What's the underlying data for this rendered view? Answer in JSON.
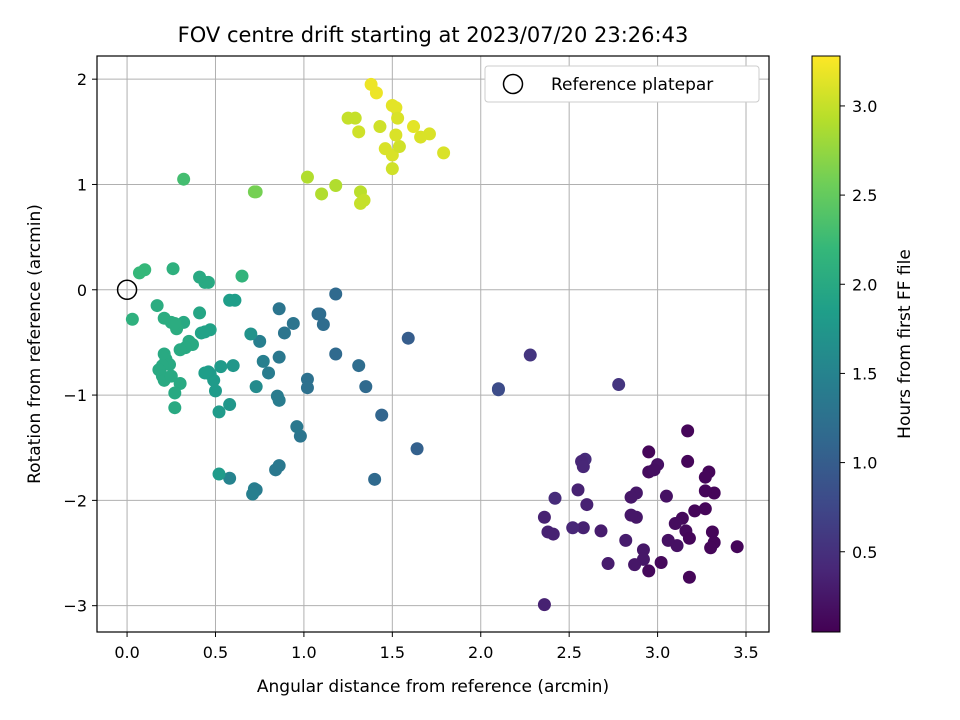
{
  "chart_data": {
    "type": "scatter",
    "title": "FOV centre drift starting at 2023/07/20 23:26:43",
    "xlabel": "Angular distance from reference (arcmin)",
    "ylabel": "Rotation from reference (arcmin)",
    "xlim": [
      -0.17,
      3.63
    ],
    "ylim": [
      -3.25,
      2.22
    ],
    "xticks": [
      0.0,
      0.5,
      1.0,
      1.5,
      2.0,
      2.5,
      3.0,
      3.5
    ],
    "xtick_labels": [
      "0.0",
      "0.5",
      "1.0",
      "1.5",
      "2.0",
      "2.5",
      "3.0",
      "3.5"
    ],
    "yticks": [
      2,
      1,
      0,
      -1,
      -2,
      -3
    ],
    "ytick_labels": [
      "2",
      "1",
      "0",
      "−1",
      "−2",
      "−3"
    ],
    "grid": true,
    "legend": {
      "position": "top-right",
      "entries": [
        "Reference platepar"
      ]
    },
    "reference_point": {
      "x": 0.0,
      "y": 0.0
    },
    "colorbar": {
      "label": "Hours from first FF file",
      "range": [
        0.05,
        3.28
      ],
      "ticks": [
        0.5,
        1.0,
        1.5,
        2.0,
        2.5,
        3.0
      ],
      "tick_labels": [
        "0.5",
        "1.0",
        "1.5",
        "2.0",
        "2.5",
        "3.0"
      ],
      "colormap": [
        "#440154",
        "#482878",
        "#3e4989",
        "#31688e",
        "#26828e",
        "#1f9e89",
        "#35b779",
        "#6ece58",
        "#b5de2b",
        "#fde725"
      ]
    },
    "points": [
      [
        3.17,
        -1.34,
        0.1
      ],
      [
        2.95,
        -1.54,
        0.1
      ],
      [
        3.17,
        -1.63,
        0.1
      ],
      [
        2.95,
        -1.73,
        0.15
      ],
      [
        3.29,
        -1.73,
        0.1
      ],
      [
        3.27,
        -1.78,
        0.1
      ],
      [
        3.32,
        -1.93,
        0.1
      ],
      [
        3.27,
        -1.91,
        0.1
      ],
      [
        3.45,
        -2.44,
        0.1
      ],
      [
        3.27,
        -2.08,
        0.1
      ],
      [
        3.21,
        -2.1,
        0.1
      ],
      [
        3.14,
        -2.17,
        0.12
      ],
      [
        3.1,
        -2.22,
        0.15
      ],
      [
        3.16,
        -2.29,
        0.12
      ],
      [
        3.18,
        -2.36,
        0.1
      ],
      [
        3.31,
        -2.3,
        0.1
      ],
      [
        3.32,
        -2.4,
        0.1
      ],
      [
        3.3,
        -2.45,
        0.1
      ],
      [
        3.11,
        -2.43,
        0.2
      ],
      [
        3.06,
        -2.38,
        0.2
      ],
      [
        3.18,
        -2.73,
        0.1
      ],
      [
        3.02,
        -2.59,
        0.12
      ],
      [
        2.95,
        -2.67,
        0.12
      ],
      [
        3.0,
        -1.66,
        0.2
      ],
      [
        2.98,
        -1.71,
        0.18
      ],
      [
        3.05,
        -1.96,
        0.2
      ],
      [
        2.88,
        -1.93,
        0.25
      ],
      [
        2.85,
        -1.97,
        0.25
      ],
      [
        2.88,
        -2.16,
        0.25
      ],
      [
        2.85,
        -2.14,
        0.25
      ],
      [
        2.92,
        -2.47,
        0.25
      ],
      [
        2.92,
        -2.56,
        0.25
      ],
      [
        2.87,
        -2.61,
        0.25
      ],
      [
        2.82,
        -2.38,
        0.3
      ],
      [
        2.72,
        -2.6,
        0.3
      ],
      [
        2.68,
        -2.29,
        0.3
      ],
      [
        2.6,
        -2.04,
        0.35
      ],
      [
        2.58,
        -2.26,
        0.35
      ],
      [
        2.52,
        -2.26,
        0.4
      ],
      [
        2.55,
        -1.9,
        0.35
      ],
      [
        2.59,
        -1.61,
        0.45
      ],
      [
        2.57,
        -1.63,
        0.4
      ],
      [
        2.58,
        -1.68,
        0.4
      ],
      [
        2.42,
        -1.98,
        0.45
      ],
      [
        2.36,
        -2.16,
        0.35
      ],
      [
        2.38,
        -2.3,
        0.35
      ],
      [
        2.41,
        -2.32,
        0.35
      ],
      [
        2.36,
        -2.99,
        0.35
      ],
      [
        2.28,
        -0.62,
        0.55
      ],
      [
        2.78,
        -0.9,
        0.55
      ],
      [
        2.1,
        -0.95,
        0.8
      ],
      [
        2.1,
        -0.94,
        0.8
      ],
      [
        1.64,
        -1.51,
        1.05
      ],
      [
        1.59,
        -0.46,
        1.0
      ],
      [
        1.44,
        -1.19,
        1.1
      ],
      [
        1.4,
        -1.8,
        1.15
      ],
      [
        1.35,
        -0.92,
        1.15
      ],
      [
        1.31,
        -0.72,
        1.2
      ],
      [
        1.18,
        -0.61,
        1.15
      ],
      [
        1.18,
        -0.04,
        1.15
      ],
      [
        1.11,
        -0.33,
        1.2
      ],
      [
        1.09,
        -0.23,
        1.2
      ],
      [
        1.08,
        -0.23,
        1.2
      ],
      [
        1.02,
        -0.85,
        1.25
      ],
      [
        1.02,
        -0.93,
        1.25
      ],
      [
        0.98,
        -1.39,
        1.3
      ],
      [
        0.96,
        -1.3,
        1.35
      ],
      [
        0.94,
        -0.32,
        1.3
      ],
      [
        0.89,
        -0.41,
        1.3
      ],
      [
        0.86,
        -0.18,
        1.3
      ],
      [
        0.86,
        -0.64,
        1.35
      ],
      [
        0.85,
        -1.01,
        1.4
      ],
      [
        0.86,
        -1.05,
        1.4
      ],
      [
        0.86,
        -1.67,
        1.35
      ],
      [
        0.84,
        -1.71,
        1.35
      ],
      [
        0.8,
        -0.79,
        1.4
      ],
      [
        0.77,
        -0.68,
        1.45
      ],
      [
        0.75,
        -0.49,
        1.45
      ],
      [
        0.72,
        -1.89,
        1.45
      ],
      [
        0.73,
        -1.9,
        1.4
      ],
      [
        0.71,
        -1.94,
        1.45
      ],
      [
        0.73,
        -0.92,
        1.6
      ],
      [
        0.7,
        -0.42,
        1.7
      ],
      [
        0.61,
        -0.1,
        1.85
      ],
      [
        0.58,
        -0.1,
        1.85
      ],
      [
        0.58,
        -1.79,
        1.5
      ],
      [
        0.58,
        -1.09,
        1.75
      ],
      [
        0.6,
        -0.72,
        1.75
      ],
      [
        0.53,
        -0.73,
        1.8
      ],
      [
        0.52,
        -1.75,
        1.8
      ],
      [
        0.52,
        -1.16,
        1.8
      ],
      [
        0.5,
        -0.96,
        1.8
      ],
      [
        0.49,
        -0.86,
        1.8
      ],
      [
        0.47,
        -0.8,
        1.85
      ],
      [
        0.46,
        -0.78,
        1.8
      ],
      [
        0.44,
        -0.79,
        1.85
      ],
      [
        0.44,
        -0.4,
        1.9
      ],
      [
        0.47,
        -0.38,
        1.9
      ],
      [
        0.42,
        -0.41,
        1.9
      ],
      [
        0.41,
        -0.22,
        1.95
      ],
      [
        0.46,
        0.07,
        2.0
      ],
      [
        0.44,
        0.07,
        2.0
      ],
      [
        0.41,
        0.12,
        2.0
      ],
      [
        0.32,
        -0.31,
        2.0
      ],
      [
        0.35,
        -0.49,
        2.0
      ],
      [
        0.37,
        -0.52,
        2.0
      ],
      [
        0.33,
        -0.55,
        2.0
      ],
      [
        0.3,
        -0.57,
        2.0
      ],
      [
        0.28,
        -0.37,
        2.05
      ],
      [
        0.27,
        -0.32,
        2.05
      ],
      [
        0.25,
        -0.31,
        2.05
      ],
      [
        0.21,
        -0.27,
        2.05
      ],
      [
        0.21,
        -0.61,
        2.0
      ],
      [
        0.22,
        -0.66,
        2.0
      ],
      [
        0.24,
        -0.71,
        2.0
      ],
      [
        0.2,
        -0.72,
        2.0
      ],
      [
        0.18,
        -0.76,
        2.0
      ],
      [
        0.2,
        -0.82,
        2.0
      ],
      [
        0.21,
        -0.86,
        2.0
      ],
      [
        0.25,
        -0.82,
        2.0
      ],
      [
        0.3,
        -0.89,
        2.0
      ],
      [
        0.27,
        -0.98,
        2.0
      ],
      [
        0.27,
        -1.12,
        2.0
      ],
      [
        0.17,
        -0.15,
        2.05
      ],
      [
        0.03,
        -0.28,
        2.1
      ],
      [
        0.26,
        0.2,
        2.1
      ],
      [
        0.1,
        0.19,
        2.2
      ],
      [
        0.07,
        0.16,
        2.2
      ],
      [
        0.65,
        0.13,
        2.15
      ],
      [
        0.32,
        1.05,
        2.3
      ],
      [
        0.72,
        0.93,
        2.6
      ],
      [
        0.73,
        0.93,
        2.6
      ],
      [
        1.02,
        1.07,
        2.9
      ],
      [
        1.1,
        0.91,
        2.9
      ],
      [
        1.18,
        0.99,
        2.9
      ],
      [
        1.32,
        0.93,
        2.95
      ],
      [
        1.32,
        0.82,
        3.0
      ],
      [
        1.34,
        0.85,
        3.0
      ],
      [
        1.25,
        1.63,
        3.0
      ],
      [
        1.29,
        1.63,
        3.0
      ],
      [
        1.31,
        1.5,
        3.05
      ],
      [
        1.43,
        1.55,
        3.05
      ],
      [
        1.46,
        1.34,
        3.1
      ],
      [
        1.5,
        1.28,
        3.1
      ],
      [
        1.5,
        1.15,
        3.05
      ],
      [
        1.54,
        1.36,
        3.05
      ],
      [
        1.52,
        1.47,
        3.1
      ],
      [
        1.5,
        1.75,
        3.15
      ],
      [
        1.52,
        1.73,
        3.15
      ],
      [
        1.53,
        1.63,
        3.1
      ],
      [
        1.38,
        1.95,
        3.2
      ],
      [
        1.41,
        1.87,
        3.2
      ],
      [
        1.62,
        1.55,
        3.15
      ],
      [
        1.66,
        1.45,
        3.1
      ],
      [
        1.71,
        1.48,
        3.1
      ],
      [
        1.79,
        1.3,
        3.1
      ]
    ]
  }
}
